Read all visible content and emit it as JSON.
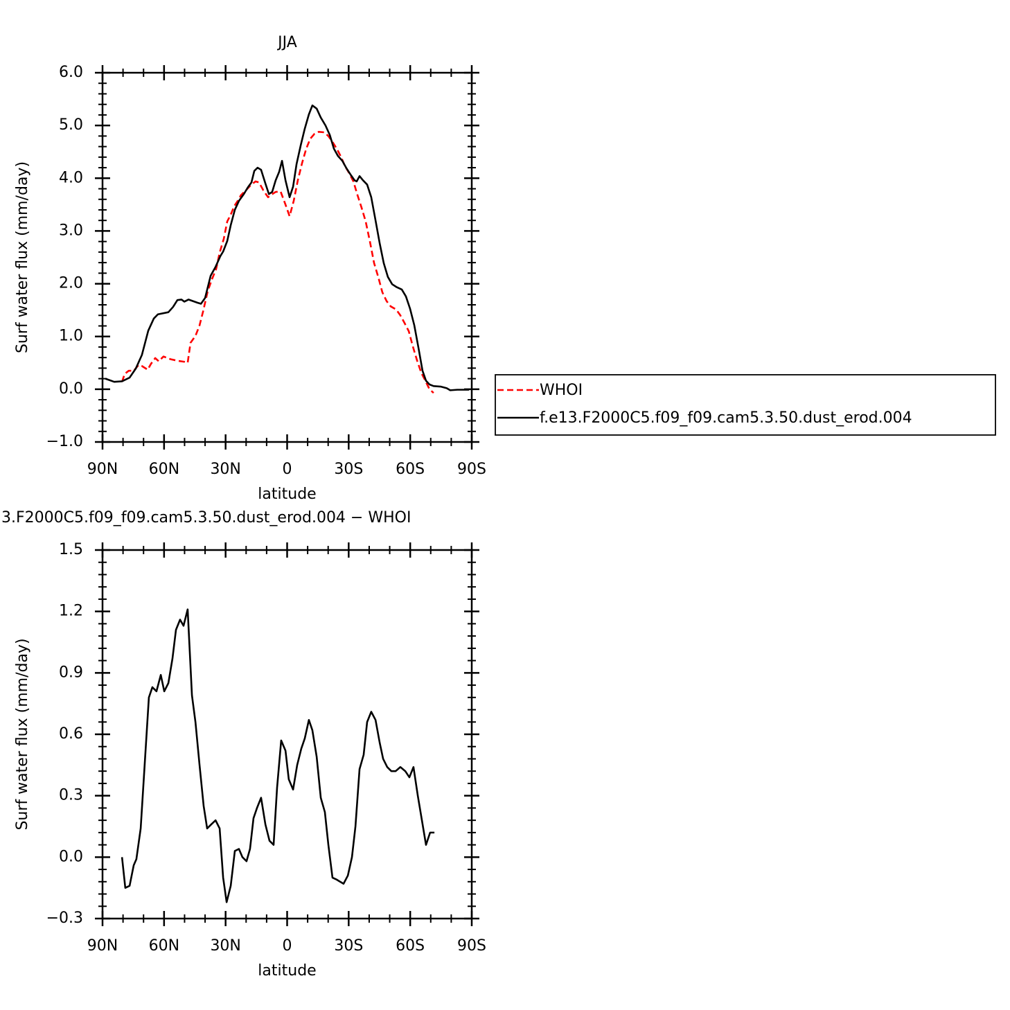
{
  "chart_data": [
    {
      "type": "line",
      "title": "JJA",
      "xlabel": "latitude",
      "ylabel": "Surf water flux (mm/day)",
      "xlim": [
        90,
        -90
      ],
      "xticks": [
        {
          "value": 90,
          "label": "90N"
        },
        {
          "value": 60,
          "label": "60N"
        },
        {
          "value": 30,
          "label": "30N"
        },
        0,
        {
          "value": -30,
          "label": "30S"
        },
        {
          "value": -60,
          "label": "60S"
        },
        {
          "value": -90,
          "label": "90S"
        }
      ],
      "ylim": [
        -1,
        6
      ],
      "yticks": [
        {
          "value": 6,
          "label": "6.0"
        },
        {
          "value": 5,
          "label": "5.0"
        },
        {
          "value": 4,
          "label": "4.0"
        },
        {
          "value": 3,
          "label": "3.0"
        },
        {
          "value": 2,
          "label": "2.0"
        },
        {
          "value": 1,
          "label": "1.0"
        },
        {
          "value": 0,
          "label": "0.0"
        },
        {
          "value": -1,
          "label": "−1.0"
        }
      ],
      "legend": "outside right",
      "series": [
        {
          "name": "WHOI",
          "color": "#ff0000",
          "line_style": "dashed",
          "x": [
            80.5,
            79.2,
            77.2,
            74.8,
            72.4,
            70.8,
            68.0,
            66.4,
            64.3,
            62.6,
            60.3,
            56.9,
            53.5,
            50.1,
            48.5,
            47.1,
            44.7,
            42.7,
            41.0,
            38.7,
            36.6,
            34.6,
            32.9,
            30.9,
            29.2,
            27.5,
            25.8,
            24.1,
            22.5,
            20.1,
            17.7,
            15.4,
            13.7,
            11.6,
            9.3,
            7.6,
            5.6,
            3.2,
            0.8,
            -1.2,
            -3.2,
            -5.2,
            -7.3,
            -9.3,
            -11.3,
            -13.3,
            -15.4,
            -18.1,
            -20.1,
            -22.1,
            -24.2,
            -26.2,
            -28.2,
            -30.2,
            -32.3,
            -34.3,
            -36.3,
            -38.3,
            -40.4,
            -42.4,
            -44.4,
            -46.4,
            -48.5,
            -50.5,
            -53.2,
            -55.2,
            -57.3,
            -59.3,
            -61.3,
            -63.3,
            -65.4,
            -67.4,
            -69.4,
            -71.4
          ],
          "values": [
            0.14,
            0.29,
            0.35,
            0.35,
            0.46,
            0.44,
            0.37,
            0.48,
            0.59,
            0.53,
            0.62,
            0.57,
            0.54,
            0.52,
            0.5,
            0.88,
            1.01,
            1.21,
            1.47,
            1.86,
            2.09,
            2.28,
            2.59,
            2.85,
            3.18,
            3.31,
            3.47,
            3.57,
            3.68,
            3.77,
            3.87,
            3.94,
            3.92,
            3.77,
            3.64,
            3.69,
            3.74,
            3.75,
            3.5,
            3.28,
            3.57,
            3.96,
            4.29,
            4.56,
            4.75,
            4.84,
            4.88,
            4.87,
            4.8,
            4.69,
            4.56,
            4.41,
            4.23,
            4.1,
            3.94,
            3.68,
            3.44,
            3.18,
            2.79,
            2.39,
            2.13,
            1.84,
            1.67,
            1.57,
            1.51,
            1.4,
            1.25,
            1.1,
            0.81,
            0.55,
            0.31,
            0.16,
            0.0,
            -0.07
          ]
        },
        {
          "name": "f.e13.F2000C5.f09_f09.cam5.3.50.dust_erod.004",
          "color": "#000000",
          "line_style": "solid",
          "x": [
            88.6,
            84.3,
            80.5,
            76.8,
            73.8,
            70.8,
            67.7,
            65.0,
            63.0,
            57.9,
            55.6,
            53.5,
            51.5,
            50.1,
            48.1,
            43.7,
            42.0,
            40.0,
            37.3,
            34.9,
            32.6,
            31.2,
            29.2,
            27.5,
            25.5,
            23.5,
            21.1,
            19.1,
            17.4,
            16.0,
            14.4,
            12.7,
            10.6,
            8.9,
            7.3,
            5.6,
            3.9,
            2.5,
            0.8,
            -1.2,
            -2.9,
            -4.6,
            -6.6,
            -8.6,
            -10.6,
            -12.3,
            -14.4,
            -16.4,
            -18.7,
            -20.8,
            -22.8,
            -24.8,
            -26.9,
            -28.9,
            -30.9,
            -32.9,
            -33.9,
            -35.3,
            -37.0,
            -39.0,
            -41.0,
            -43.1,
            -45.1,
            -47.1,
            -49.1,
            -51.2,
            -53.2,
            -55.9,
            -57.9,
            -59.9,
            -62.0,
            -64.0,
            -66.0,
            -67.7,
            -69.4,
            -71.4,
            -74.8,
            -77.8,
            -79.5,
            -82.9,
            -88.7
          ],
          "values": [
            0.2,
            0.14,
            0.15,
            0.22,
            0.39,
            0.65,
            1.11,
            1.34,
            1.42,
            1.46,
            1.56,
            1.69,
            1.7,
            1.66,
            1.7,
            1.64,
            1.62,
            1.73,
            2.15,
            2.32,
            2.52,
            2.61,
            2.81,
            3.11,
            3.4,
            3.57,
            3.7,
            3.83,
            3.92,
            4.14,
            4.2,
            4.16,
            3.9,
            3.7,
            3.74,
            3.96,
            4.12,
            4.33,
            3.96,
            3.64,
            3.84,
            4.27,
            4.62,
            4.94,
            5.21,
            5.38,
            5.32,
            5.15,
            5.0,
            4.82,
            4.56,
            4.42,
            4.33,
            4.19,
            4.07,
            3.96,
            3.94,
            4.04,
            3.96,
            3.88,
            3.64,
            3.2,
            2.77,
            2.39,
            2.13,
            1.99,
            1.94,
            1.89,
            1.76,
            1.53,
            1.21,
            0.79,
            0.35,
            0.16,
            0.09,
            0.06,
            0.05,
            0.02,
            -0.02,
            -0.01,
            -0.01
          ]
        }
      ]
    },
    {
      "type": "line",
      "title": "3.F2000C5.f09_f09.cam5.3.50.dust_erod.004 − WHOI",
      "xlabel": "latitude",
      "ylabel": "Surf water flux (mm/day)",
      "xlim": [
        90,
        -90
      ],
      "xticks": [
        {
          "value": 90,
          "label": "90N"
        },
        {
          "value": 60,
          "label": "60N"
        },
        {
          "value": 30,
          "label": "30N"
        },
        0,
        {
          "value": -30,
          "label": "30S"
        },
        {
          "value": -60,
          "label": "60S"
        },
        {
          "value": -90,
          "label": "90S"
        }
      ],
      "ylim": [
        -0.3,
        1.5
      ],
      "yticks": [
        1.5,
        1.2,
        0.9,
        0.6,
        0.3,
        {
          "value": 0,
          "label": "0.0"
        },
        {
          "value": -0.3,
          "label": "−0.3"
        }
      ],
      "series": [
        {
          "color": "#000000",
          "line_style": "solid",
          "x": [
            80.5,
            78.9,
            76.8,
            74.8,
            73.5,
            71.4,
            69.4,
            67.4,
            65.7,
            63.7,
            61.6,
            59.9,
            57.9,
            55.9,
            54.2,
            52.2,
            50.5,
            48.5,
            46.4,
            44.7,
            42.7,
            40.7,
            39.0,
            37.0,
            34.9,
            32.9,
            31.2,
            29.5,
            27.5,
            25.5,
            23.5,
            21.8,
            19.8,
            18.1,
            16.4,
            14.7,
            12.7,
            10.6,
            8.6,
            6.6,
            4.9,
            2.9,
            0.8,
            -0.8,
            -2.9,
            -4.9,
            -6.9,
            -8.6,
            -10.6,
            -12.3,
            -14.4,
            -16.4,
            -18.4,
            -20.1,
            -22.1,
            -24.2,
            -25.8,
            -27.5,
            -29.6,
            -31.6,
            -33.3,
            -35.3,
            -37.3,
            -39.0,
            -41.0,
            -43.1,
            -45.1,
            -46.8,
            -48.8,
            -50.8,
            -52.9,
            -55.2,
            -57.6,
            -59.6,
            -61.6,
            -63.7,
            -65.7,
            -67.7,
            -69.7,
            -71.8
          ],
          "values": [
            0.0,
            -0.15,
            -0.14,
            -0.04,
            -0.01,
            0.14,
            0.46,
            0.78,
            0.83,
            0.81,
            0.89,
            0.81,
            0.85,
            0.97,
            1.11,
            1.16,
            1.13,
            1.21,
            0.79,
            0.66,
            0.45,
            0.25,
            0.14,
            0.16,
            0.18,
            0.14,
            -0.1,
            -0.22,
            -0.14,
            0.03,
            0.04,
            0.0,
            -0.02,
            0.04,
            0.19,
            0.24,
            0.29,
            0.16,
            0.08,
            0.06,
            0.34,
            0.57,
            0.52,
            0.38,
            0.33,
            0.45,
            0.53,
            0.58,
            0.67,
            0.62,
            0.49,
            0.29,
            0.22,
            0.06,
            -0.1,
            -0.11,
            -0.12,
            -0.13,
            -0.09,
            0.0,
            0.15,
            0.43,
            0.5,
            0.66,
            0.71,
            0.67,
            0.56,
            0.48,
            0.44,
            0.42,
            0.42,
            0.44,
            0.42,
            0.39,
            0.44,
            0.3,
            0.18,
            0.06,
            0.12,
            0.12
          ]
        }
      ]
    }
  ]
}
